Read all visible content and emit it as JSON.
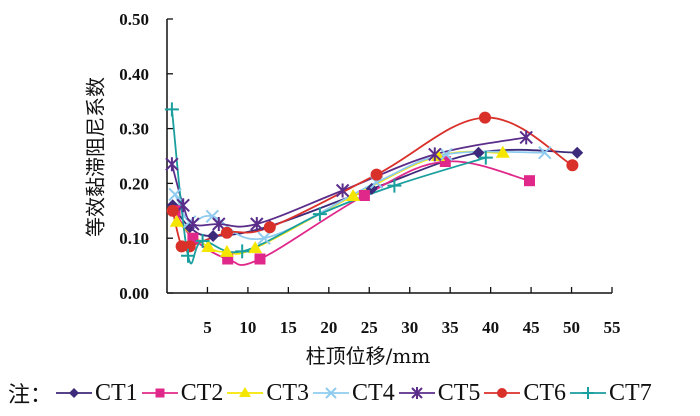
{
  "chart_data": {
    "type": "line",
    "title": "",
    "xlabel": "柱顶位移/mm",
    "ylabel": "等效黏滞阻尼系数",
    "xlim": [
      0,
      55
    ],
    "ylim": [
      0.0,
      0.5
    ],
    "x_ticks": [
      "5",
      "10",
      "15",
      "20",
      "25",
      "30",
      "35",
      "40",
      "45",
      "50",
      "55"
    ],
    "x_tick_values": [
      5,
      10,
      15,
      20,
      25,
      30,
      35,
      40,
      45,
      50,
      55
    ],
    "y_ticks": [
      "0.00",
      "0.10",
      "0.20",
      "0.30",
      "0.40",
      "0.50"
    ],
    "y_tick_values": [
      0.0,
      0.1,
      0.2,
      0.3,
      0.4,
      0.5
    ],
    "grid": false,
    "legend_position": "bottom",
    "legend_prefix": "注：",
    "series": [
      {
        "name": "CT1",
        "color": "#3d2a7a",
        "marker": "diamond",
        "x": [
          0.7,
          2.8,
          5.7,
          12.7,
          25.3,
          38.5,
          50.7
        ],
        "y": [
          0.16,
          0.12,
          0.104,
          0.122,
          0.19,
          0.256,
          0.256
        ]
      },
      {
        "name": "CT2",
        "color": "#e0288a",
        "marker": "square",
        "x": [
          1.0,
          3.2,
          7.5,
          11.5,
          24.4,
          34.4,
          44.8
        ],
        "y": [
          0.15,
          0.1,
          0.062,
          0.062,
          0.178,
          0.24,
          0.205
        ]
      },
      {
        "name": "CT3",
        "color": "#f5e600",
        "marker": "triangle",
        "x": [
          1.2,
          5.1,
          7.4,
          10.9,
          23.0,
          33.5,
          41.5
        ],
        "y": [
          0.13,
          0.084,
          0.075,
          0.082,
          0.177,
          0.25,
          0.256
        ]
      },
      {
        "name": "CT4",
        "color": "#8fcbee",
        "marker": "x",
        "x": [
          1.0,
          2.8,
          5.6,
          12.0,
          25.9,
          34.5,
          46.7
        ],
        "y": [
          0.18,
          0.13,
          0.14,
          0.1,
          0.202,
          0.253,
          0.256
        ]
      },
      {
        "name": "CT5",
        "color": "#5b2d8a",
        "marker": "star",
        "x": [
          0.6,
          2.0,
          3.2,
          6.4,
          11.1,
          21.7,
          33.1,
          44.4
        ],
        "y": [
          0.235,
          0.16,
          0.126,
          0.126,
          0.126,
          0.187,
          0.253,
          0.284
        ]
      },
      {
        "name": "CT6",
        "color": "#d9302a",
        "marker": "circle",
        "x": [
          0.7,
          1.8,
          2.8,
          7.4,
          12.7,
          25.9,
          39.3,
          50.1
        ],
        "y": [
          0.15,
          0.085,
          0.085,
          0.11,
          0.12,
          0.216,
          0.32,
          0.233
        ]
      },
      {
        "name": "CT7",
        "color": "#1a9e9e",
        "marker": "plus",
        "x": [
          0.6,
          2.6,
          4.4,
          9.3,
          18.9,
          28.1,
          39.4
        ],
        "y": [
          0.335,
          0.068,
          0.095,
          0.076,
          0.144,
          0.196,
          0.247
        ]
      }
    ]
  }
}
